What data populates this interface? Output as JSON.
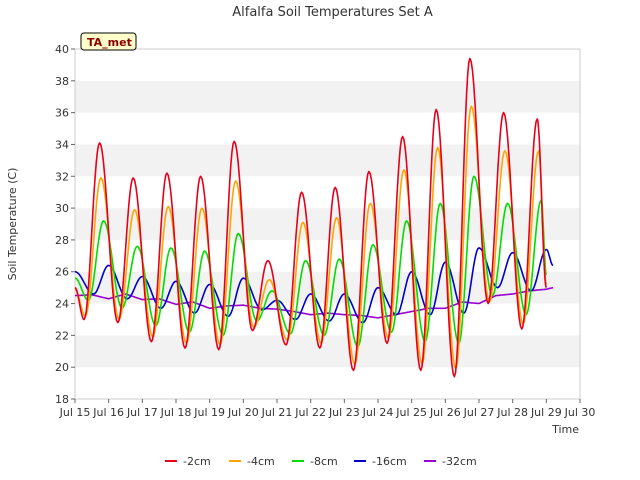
{
  "chart_data": {
    "type": "line",
    "title": "Alfalfa Soil Temperatures Set A",
    "xlabel": "Time",
    "ylabel": "Soil Temperature (C)",
    "xlim": [
      15,
      30
    ],
    "ylim": [
      18,
      40
    ],
    "yticks": [
      18,
      20,
      22,
      24,
      26,
      28,
      30,
      32,
      34,
      36,
      38,
      40
    ],
    "x_tick_values": [
      15,
      16,
      17,
      18,
      19,
      20,
      21,
      22,
      23,
      24,
      25,
      26,
      27,
      28,
      29,
      30
    ],
    "x_tick_labels": [
      "Jul 15",
      "Jul 16",
      "Jul 17",
      "Jul 18",
      "Jul 19",
      "Jul 20",
      "Jul 21",
      "Jul 22",
      "Jul 23",
      "Jul 24",
      "Jul 25",
      "Jul 26",
      "Jul 27",
      "Jul 28",
      "Jul 29",
      "Jul 30"
    ],
    "annotation": "TA_met",
    "series": [
      {
        "name": "-2cm",
        "color": "#e6001a",
        "peaks": [
          [
            15.73,
            34.1
          ],
          [
            16.73,
            31.9
          ],
          [
            17.73,
            32.2
          ],
          [
            18.73,
            32.0
          ],
          [
            19.73,
            34.2
          ],
          [
            20.73,
            26.7
          ],
          [
            21.73,
            31.0
          ],
          [
            22.73,
            31.3
          ],
          [
            23.73,
            32.3
          ],
          [
            24.73,
            34.5
          ],
          [
            25.73,
            36.2
          ],
          [
            26.73,
            39.4
          ],
          [
            27.73,
            36.0
          ],
          [
            28.73,
            35.6
          ]
        ],
        "troughs": [
          [
            15.0,
            25.0
          ],
          [
            15.27,
            23.0
          ],
          [
            16.27,
            22.8
          ],
          [
            17.27,
            21.6
          ],
          [
            18.27,
            21.2
          ],
          [
            19.27,
            21.1
          ],
          [
            20.27,
            22.3
          ],
          [
            21.27,
            21.4
          ],
          [
            22.27,
            21.2
          ],
          [
            23.27,
            19.8
          ],
          [
            24.27,
            21.5
          ],
          [
            25.27,
            19.8
          ],
          [
            26.27,
            19.4
          ],
          [
            27.27,
            24.0
          ],
          [
            28.27,
            22.4
          ],
          [
            29.0,
            25.0
          ]
        ]
      },
      {
        "name": "-4cm",
        "color": "#ffa500",
        "peaks": [
          [
            15.77,
            31.9
          ],
          [
            16.77,
            29.9
          ],
          [
            17.77,
            30.1
          ],
          [
            18.77,
            30.0
          ],
          [
            19.77,
            31.7
          ],
          [
            20.77,
            25.5
          ],
          [
            21.77,
            29.1
          ],
          [
            22.77,
            29.4
          ],
          [
            23.77,
            30.3
          ],
          [
            24.77,
            32.4
          ],
          [
            25.77,
            33.8
          ],
          [
            26.77,
            36.4
          ],
          [
            27.77,
            33.6
          ],
          [
            28.77,
            33.6
          ]
        ],
        "troughs": [
          [
            15.0,
            24.9
          ],
          [
            15.31,
            23.2
          ],
          [
            16.31,
            23.0
          ],
          [
            17.31,
            21.9
          ],
          [
            18.31,
            21.5
          ],
          [
            19.31,
            21.4
          ],
          [
            20.31,
            22.5
          ],
          [
            21.31,
            21.7
          ],
          [
            22.31,
            21.5
          ],
          [
            23.31,
            20.2
          ],
          [
            24.31,
            21.8
          ],
          [
            25.31,
            20.2
          ],
          [
            26.31,
            19.9
          ],
          [
            27.31,
            24.1
          ],
          [
            28.31,
            22.7
          ],
          [
            29.0,
            25.2
          ]
        ]
      },
      {
        "name": "-8cm",
        "color": "#00dd00",
        "peaks": [
          [
            15.85,
            29.2
          ],
          [
            16.85,
            27.6
          ],
          [
            17.85,
            27.5
          ],
          [
            18.85,
            27.3
          ],
          [
            19.85,
            28.4
          ],
          [
            20.85,
            24.8
          ],
          [
            21.85,
            26.7
          ],
          [
            22.85,
            26.8
          ],
          [
            23.85,
            27.7
          ],
          [
            24.85,
            29.2
          ],
          [
            25.85,
            30.3
          ],
          [
            26.85,
            32.0
          ],
          [
            27.85,
            30.3
          ],
          [
            28.85,
            30.5
          ]
        ],
        "troughs": [
          [
            15.0,
            25.6
          ],
          [
            15.4,
            24.2
          ],
          [
            16.4,
            23.7
          ],
          [
            17.4,
            22.6
          ],
          [
            18.4,
            22.2
          ],
          [
            19.4,
            22.0
          ],
          [
            20.4,
            22.9
          ],
          [
            21.4,
            22.1
          ],
          [
            22.4,
            22.0
          ],
          [
            23.4,
            21.3
          ],
          [
            24.4,
            22.2
          ],
          [
            25.4,
            21.6
          ],
          [
            26.4,
            21.5
          ],
          [
            27.4,
            24.5
          ],
          [
            28.4,
            23.3
          ],
          [
            29.0,
            25.8
          ]
        ]
      },
      {
        "name": "-16cm",
        "color": "#0000cc",
        "peaks": [
          [
            15.0,
            26.0
          ],
          [
            16.0,
            26.4
          ],
          [
            17.0,
            25.7
          ],
          [
            18.0,
            25.4
          ],
          [
            19.0,
            25.2
          ],
          [
            20.0,
            25.6
          ],
          [
            21.0,
            24.2
          ],
          [
            22.0,
            24.6
          ],
          [
            23.0,
            24.6
          ],
          [
            24.0,
            25.0
          ],
          [
            25.0,
            26.0
          ],
          [
            26.0,
            26.6
          ],
          [
            27.0,
            27.5
          ],
          [
            28.0,
            27.2
          ],
          [
            29.0,
            27.4
          ]
        ],
        "troughs": [
          [
            15.55,
            24.6
          ],
          [
            16.55,
            24.3
          ],
          [
            17.55,
            23.7
          ],
          [
            18.55,
            23.4
          ],
          [
            19.55,
            23.2
          ],
          [
            20.55,
            23.6
          ],
          [
            21.55,
            23.0
          ],
          [
            22.55,
            22.9
          ],
          [
            23.55,
            22.8
          ],
          [
            24.55,
            23.3
          ],
          [
            25.55,
            23.3
          ],
          [
            26.55,
            23.4
          ],
          [
            27.55,
            25.0
          ],
          [
            28.55,
            24.8
          ],
          [
            29.2,
            26.4
          ]
        ]
      },
      {
        "name": "-32cm",
        "color": "#9900cc",
        "x": [
          15.0,
          15.5,
          16.0,
          16.5,
          17.0,
          17.5,
          18.0,
          18.5,
          19.0,
          19.5,
          20.0,
          20.5,
          21.0,
          21.5,
          22.0,
          22.5,
          23.0,
          23.5,
          24.0,
          24.5,
          25.0,
          25.5,
          26.0,
          26.5,
          27.0,
          27.5,
          28.0,
          28.5,
          29.0,
          29.2
        ],
        "values": [
          24.5,
          24.55,
          24.3,
          24.6,
          24.25,
          24.3,
          23.95,
          24.1,
          23.7,
          23.85,
          23.9,
          23.7,
          23.65,
          23.5,
          23.3,
          23.4,
          23.3,
          23.25,
          23.1,
          23.3,
          23.5,
          23.7,
          23.7,
          24.1,
          24.0,
          24.5,
          24.6,
          24.8,
          24.9,
          25.0
        ]
      }
    ]
  }
}
